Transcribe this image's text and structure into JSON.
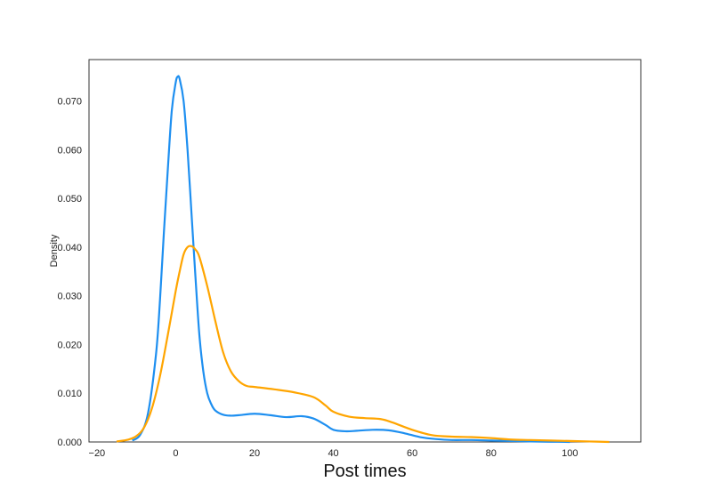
{
  "chart_data": {
    "type": "line",
    "title": "",
    "xlabel": "Post times",
    "ylabel": "Density",
    "xlim": [
      -22,
      118
    ],
    "ylim": [
      0,
      0.0785
    ],
    "x_ticks": [
      -20,
      0,
      20,
      40,
      60,
      80,
      100
    ],
    "x_tick_labels": [
      "−20",
      "0",
      "20",
      "40",
      "60",
      "80",
      "100"
    ],
    "y_ticks": [
      0,
      0.01,
      0.02,
      0.03,
      0.04,
      0.05,
      0.06,
      0.07
    ],
    "y_tick_labels": [
      "0.000",
      "0.010",
      "0.020",
      "0.030",
      "0.040",
      "0.050",
      "0.060",
      "0.070"
    ],
    "grid": false,
    "series": [
      {
        "color": "#1e8ff0",
        "x": [
          -11,
          -9,
          -7,
          -5,
          -4,
          -3,
          -2,
          -1,
          0,
          0.5,
          1,
          2,
          3,
          4,
          5,
          6,
          7,
          8,
          9,
          10,
          12,
          14,
          16,
          20,
          24,
          28,
          32,
          35,
          38,
          40,
          43,
          46,
          50,
          54,
          58,
          62,
          66,
          70,
          75,
          80,
          85,
          90,
          95,
          100
        ],
        "y": [
          0.0003,
          0.0015,
          0.006,
          0.018,
          0.029,
          0.043,
          0.056,
          0.068,
          0.0738,
          0.075,
          0.0745,
          0.07,
          0.06,
          0.047,
          0.034,
          0.022,
          0.0145,
          0.01,
          0.0078,
          0.0065,
          0.0056,
          0.0054,
          0.0055,
          0.0058,
          0.0055,
          0.0051,
          0.0053,
          0.0048,
          0.0035,
          0.0025,
          0.0022,
          0.0023,
          0.0025,
          0.0024,
          0.0018,
          0.001,
          0.0006,
          0.0004,
          0.0004,
          0.0003,
          0.0002,
          0.0001,
          5e-05,
          0.0
        ]
      },
      {
        "color": "#ffa500",
        "x": [
          -15,
          -12,
          -10,
          -8,
          -6,
          -4,
          -2,
          0,
          1,
          2,
          3,
          4,
          5,
          6,
          8,
          10,
          12,
          14,
          16,
          18,
          20,
          25,
          30,
          35,
          38,
          40,
          44,
          48,
          52,
          55,
          60,
          65,
          70,
          75,
          80,
          85,
          90,
          95,
          100,
          105,
          110
        ],
        "y": [
          0.0001,
          0.0005,
          0.0012,
          0.003,
          0.007,
          0.0135,
          0.022,
          0.031,
          0.035,
          0.0385,
          0.04,
          0.0402,
          0.0395,
          0.038,
          0.032,
          0.025,
          0.0185,
          0.0145,
          0.0125,
          0.0115,
          0.0113,
          0.0108,
          0.0102,
          0.0092,
          0.0075,
          0.0062,
          0.0052,
          0.0049,
          0.0047,
          0.004,
          0.0025,
          0.0014,
          0.0011,
          0.001,
          0.0008,
          0.0005,
          0.0004,
          0.0003,
          0.0002,
          0.0001,
          0.0
        ]
      }
    ]
  }
}
